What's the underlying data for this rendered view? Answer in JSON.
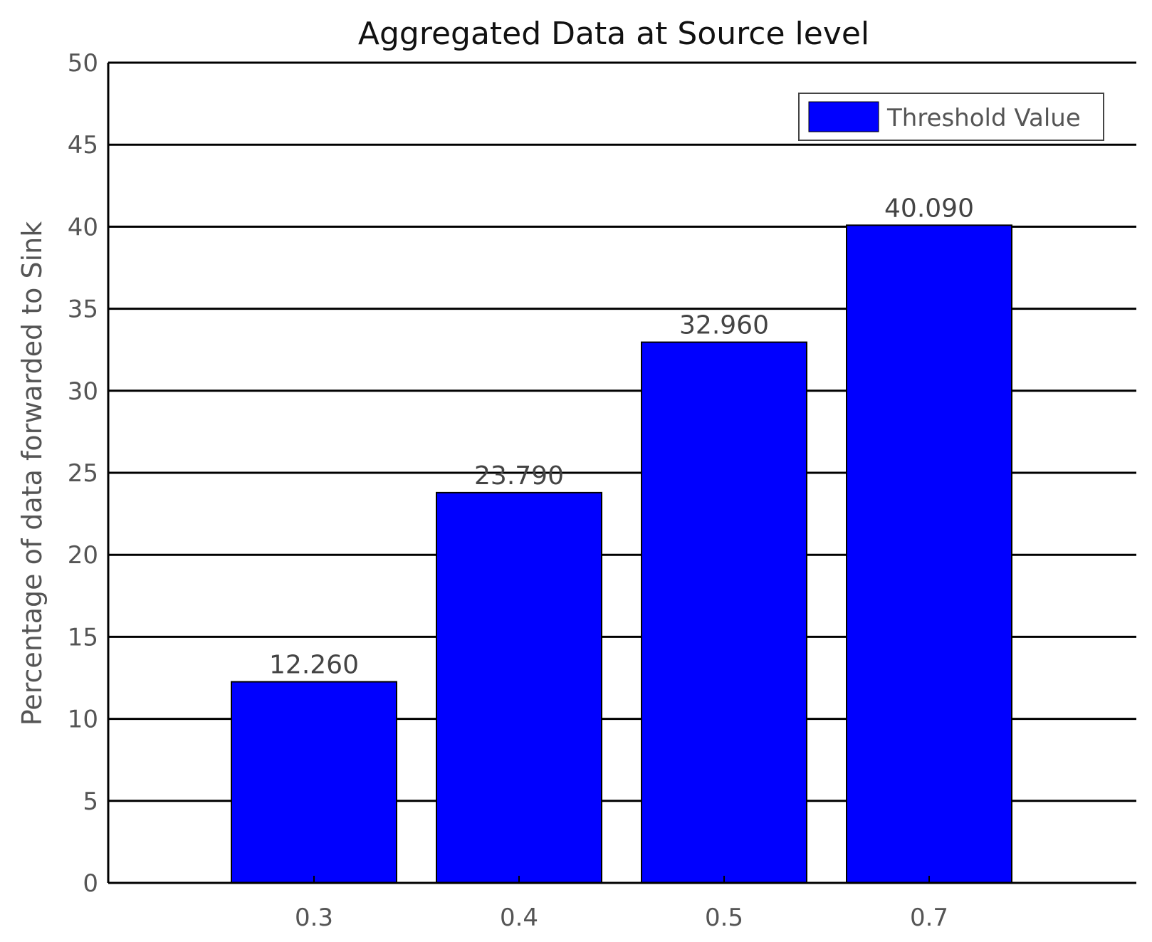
{
  "chart_data": {
    "type": "bar",
    "title": "Aggregated Data at Source level",
    "ylabel": "Percentage of data forwarded to Sink",
    "xlabel": "",
    "categories": [
      "0.3",
      "0.4",
      "0.5",
      "0.7"
    ],
    "series": [
      {
        "name": "Threshold Value",
        "values": [
          12.26,
          23.79,
          32.96,
          40.09
        ],
        "labels": [
          "12.260",
          "23.790",
          "32.960",
          "40.090"
        ],
        "color": "#0000ff"
      }
    ],
    "ylim": [
      0,
      50
    ],
    "yticks": [
      "0",
      "5",
      "10",
      "15",
      "20",
      "25",
      "30",
      "35",
      "40",
      "45",
      "50"
    ],
    "grid": true,
    "legend_position": "top-right"
  }
}
